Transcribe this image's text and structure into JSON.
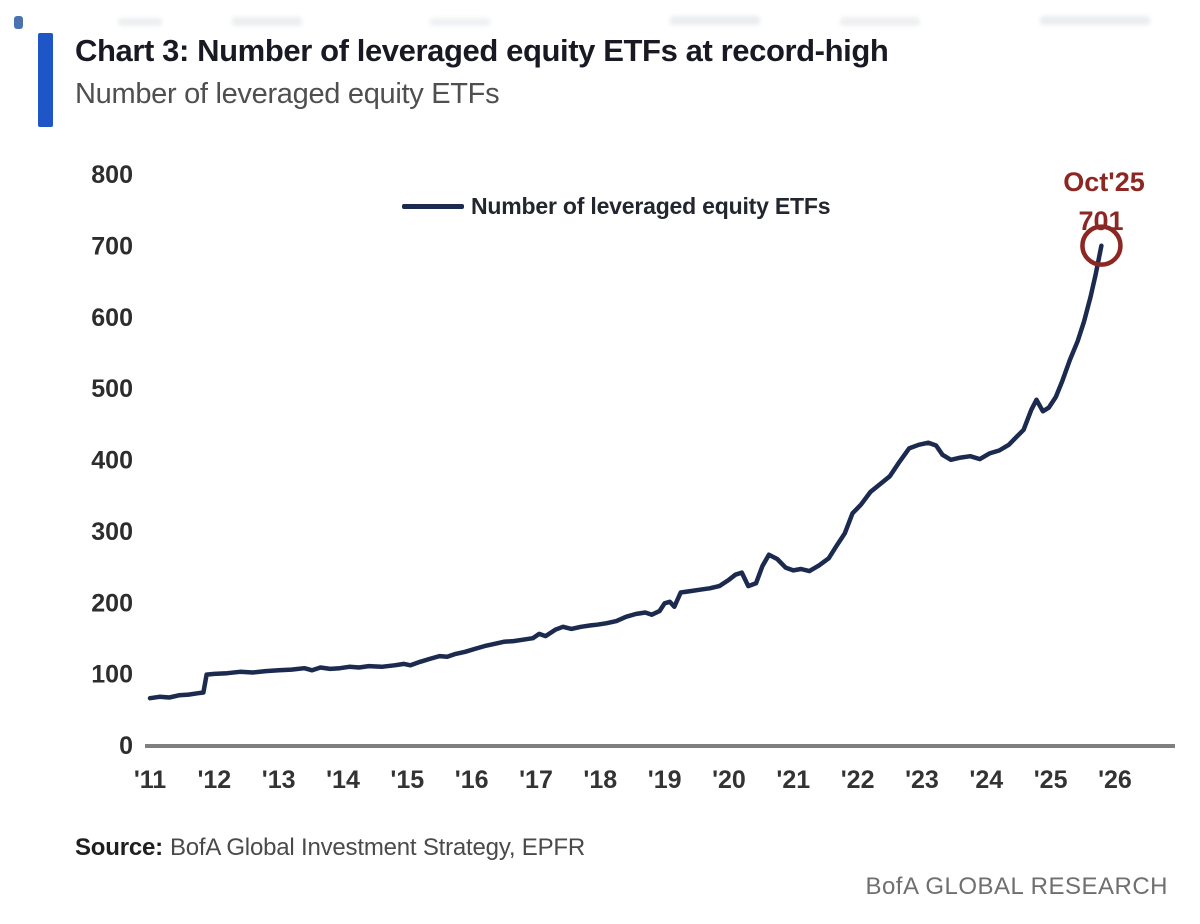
{
  "header": {
    "accent_color": "#1e56c8",
    "title": "Chart 3: Number of leveraged equity ETFs at record-high",
    "subtitle": "Number of leveraged equity ETFs"
  },
  "chart_data": {
    "type": "line",
    "title": "Chart 3: Number of leveraged equity ETFs at record-high",
    "subtitle": "Number of leveraged equity ETFs",
    "xlabel": "",
    "ylabel": "",
    "grid": false,
    "x_tick_labels": [
      "'11",
      "'12",
      "'13",
      "'14",
      "'15",
      "'16",
      "'17",
      "'18",
      "'19",
      "'20",
      "'21",
      "'22",
      "'23",
      "'24",
      "'25",
      "'26"
    ],
    "x_range": [
      2011,
      2026
    ],
    "y_ticks": [
      0,
      100,
      200,
      300,
      400,
      500,
      600,
      700,
      800
    ],
    "ylim": [
      0,
      800
    ],
    "axis_color": "#7f7f7f",
    "legend": {
      "position": "top-center",
      "entries": [
        {
          "label": "Number of leveraged equity ETFs",
          "color": "#1b2a4e"
        }
      ]
    },
    "series": [
      {
        "name": "Number of leveraged equity ETFs",
        "color": "#1b2a4e",
        "points": [
          [
            2011.0,
            67
          ],
          [
            2011.15,
            69
          ],
          [
            2011.3,
            68
          ],
          [
            2011.45,
            71
          ],
          [
            2011.6,
            72
          ],
          [
            2011.75,
            74
          ],
          [
            2011.83,
            75
          ],
          [
            2011.88,
            100
          ],
          [
            2012.0,
            101
          ],
          [
            2012.2,
            102
          ],
          [
            2012.4,
            104
          ],
          [
            2012.6,
            103
          ],
          [
            2012.8,
            105
          ],
          [
            2013.0,
            106
          ],
          [
            2013.2,
            107
          ],
          [
            2013.4,
            109
          ],
          [
            2013.52,
            106
          ],
          [
            2013.65,
            110
          ],
          [
            2013.8,
            108
          ],
          [
            2013.95,
            109
          ],
          [
            2014.1,
            111
          ],
          [
            2014.25,
            110
          ],
          [
            2014.4,
            112
          ],
          [
            2014.6,
            111
          ],
          [
            2014.8,
            113
          ],
          [
            2014.95,
            115
          ],
          [
            2015.05,
            113
          ],
          [
            2015.2,
            118
          ],
          [
            2015.35,
            122
          ],
          [
            2015.5,
            126
          ],
          [
            2015.62,
            125
          ],
          [
            2015.75,
            129
          ],
          [
            2015.9,
            132
          ],
          [
            2016.05,
            136
          ],
          [
            2016.2,
            140
          ],
          [
            2016.35,
            143
          ],
          [
            2016.5,
            146
          ],
          [
            2016.65,
            147
          ],
          [
            2016.8,
            149
          ],
          [
            2016.95,
            151
          ],
          [
            2017.05,
            157
          ],
          [
            2017.15,
            154
          ],
          [
            2017.3,
            163
          ],
          [
            2017.42,
            167
          ],
          [
            2017.55,
            164
          ],
          [
            2017.7,
            167
          ],
          [
            2017.85,
            169
          ],
          [
            2017.95,
            170
          ],
          [
            2018.1,
            172
          ],
          [
            2018.25,
            175
          ],
          [
            2018.4,
            181
          ],
          [
            2018.55,
            185
          ],
          [
            2018.7,
            187
          ],
          [
            2018.8,
            184
          ],
          [
            2018.92,
            189
          ],
          [
            2019.0,
            200
          ],
          [
            2019.08,
            202
          ],
          [
            2019.15,
            195
          ],
          [
            2019.25,
            215
          ],
          [
            2019.4,
            217
          ],
          [
            2019.55,
            219
          ],
          [
            2019.7,
            221
          ],
          [
            2019.85,
            224
          ],
          [
            2020.0,
            233
          ],
          [
            2020.1,
            240
          ],
          [
            2020.2,
            243
          ],
          [
            2020.3,
            224
          ],
          [
            2020.42,
            228
          ],
          [
            2020.52,
            252
          ],
          [
            2020.62,
            268
          ],
          [
            2020.75,
            262
          ],
          [
            2020.88,
            250
          ],
          [
            2021.0,
            246
          ],
          [
            2021.12,
            248
          ],
          [
            2021.25,
            245
          ],
          [
            2021.4,
            253
          ],
          [
            2021.55,
            263
          ],
          [
            2021.67,
            280
          ],
          [
            2021.8,
            298
          ],
          [
            2021.92,
            326
          ],
          [
            2022.05,
            338
          ],
          [
            2022.2,
            356
          ],
          [
            2022.35,
            367
          ],
          [
            2022.5,
            378
          ],
          [
            2022.65,
            398
          ],
          [
            2022.8,
            417
          ],
          [
            2022.95,
            422
          ],
          [
            2023.1,
            425
          ],
          [
            2023.22,
            421
          ],
          [
            2023.32,
            408
          ],
          [
            2023.45,
            401
          ],
          [
            2023.6,
            404
          ],
          [
            2023.75,
            406
          ],
          [
            2023.9,
            402
          ],
          [
            2024.05,
            410
          ],
          [
            2024.2,
            414
          ],
          [
            2024.35,
            422
          ],
          [
            2024.48,
            434
          ],
          [
            2024.58,
            443
          ],
          [
            2024.7,
            471
          ],
          [
            2024.78,
            485
          ],
          [
            2024.88,
            469
          ],
          [
            2024.97,
            474
          ],
          [
            2025.08,
            489
          ],
          [
            2025.18,
            511
          ],
          [
            2025.3,
            541
          ],
          [
            2025.42,
            567
          ],
          [
            2025.52,
            595
          ],
          [
            2025.62,
            629
          ],
          [
            2025.7,
            661
          ],
          [
            2025.79,
            701
          ]
        ]
      }
    ],
    "annotation": {
      "line1": "Oct'25",
      "line2": "701",
      "x": 2025.79,
      "y": 701,
      "color": "#8c2723"
    }
  },
  "source": {
    "label": "Source:",
    "text": "BofA Global Investment Strategy, EPFR"
  },
  "footer": {
    "brand": "BofA GLOBAL RESEARCH"
  }
}
